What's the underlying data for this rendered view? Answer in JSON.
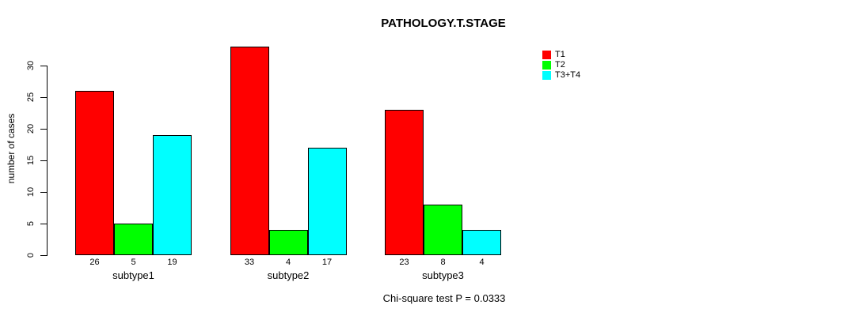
{
  "chart_data": {
    "type": "bar",
    "title": "PATHOLOGY.T.STAGE",
    "ylabel": "number of cases",
    "xlabel": "",
    "categories": [
      "subtype1",
      "subtype2",
      "subtype3"
    ],
    "series": [
      {
        "name": "T1",
        "color": "#ff0000",
        "values": [
          26,
          33,
          23
        ]
      },
      {
        "name": "T2",
        "color": "#00ff00",
        "values": [
          5,
          4,
          8
        ]
      },
      {
        "name": "T3+T4",
        "color": "#00ffff",
        "values": [
          19,
          17,
          4
        ]
      }
    ],
    "bar_value_labels": [
      [
        26,
        5,
        19
      ],
      [
        33,
        4,
        17
      ],
      [
        23,
        8,
        4
      ]
    ],
    "yticks": [
      0,
      5,
      10,
      15,
      20,
      25,
      30
    ],
    "ylim": [
      0,
      33
    ],
    "grid": false,
    "legend_position": "top-right",
    "legend_entries": [
      "T1",
      "T2",
      "T3+T4"
    ],
    "footer": "Chi-square test P = 0.0333",
    "axis_color": "#000000",
    "background_color": "#ffffff"
  }
}
